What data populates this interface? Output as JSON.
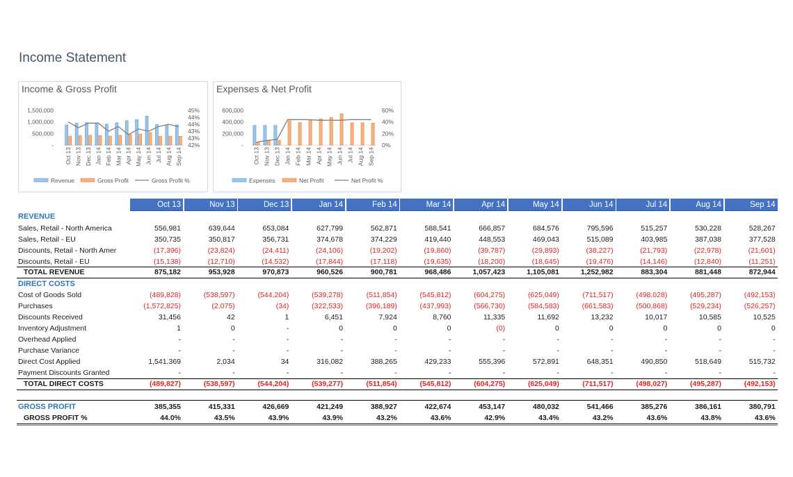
{
  "page_title": "Income Statement",
  "colors": {
    "header_bg": "#4472c4",
    "section_text": "#2e75b6",
    "negative": "#e02424",
    "bar_blue": "#9dc3e6",
    "bar_orange": "#f4b183",
    "line_gray": "#808080"
  },
  "months": [
    "Oct 13",
    "Nov 13",
    "Dec 13",
    "Jan 14",
    "Feb 14",
    "Mar 14",
    "Apr 14",
    "May 14",
    "Jun 14",
    "Jul 14",
    "Aug 14",
    "Sep 14"
  ],
  "chart_data": [
    {
      "type": "bar",
      "title": "Income & Gross Profit",
      "categories": [
        "Oct 13",
        "Nov 13",
        "Dec 13",
        "Jan 14",
        "Feb 14",
        "Mar 14",
        "Apr 14",
        "May 14",
        "Jun 14",
        "Jul 14",
        "Aug 14",
        "Sep 14"
      ],
      "y_ticks": [
        "1,500,000",
        "1,000,000",
        "500,000",
        "-"
      ],
      "y2_ticks": [
        "45%",
        "44%",
        "44%",
        "43%",
        "43%",
        "42%"
      ],
      "ylim": [
        0,
        1500000
      ],
      "y2lim": [
        42,
        45
      ],
      "series": [
        {
          "name": "Revenue",
          "kind": "bar",
          "values": [
            875182,
            953928,
            970873,
            960526,
            900781,
            968486,
            1057423,
            1105081,
            1252982,
            883304,
            881448,
            872944
          ]
        },
        {
          "name": "Gross Profit",
          "kind": "bar",
          "values": [
            385355,
            415331,
            426669,
            421249,
            388927,
            422674,
            453147,
            480032,
            541466,
            385276,
            386161,
            380791
          ]
        },
        {
          "name": "Gross Profit %",
          "kind": "line",
          "values": [
            44.0,
            43.5,
            43.9,
            43.9,
            43.2,
            43.6,
            42.9,
            43.4,
            43.2,
            43.6,
            43.8,
            43.6
          ]
        }
      ],
      "legend": [
        "Revenue",
        "Gross Profit",
        "Gross Profit %"
      ],
      "legend_position": "bottom"
    },
    {
      "type": "bar",
      "title": "Expenses & Net Profit",
      "categories": [
        "Oct 13",
        "Nov 13",
        "Dec 13",
        "Jan 14",
        "Feb 14",
        "Mar 14",
        "Apr 14",
        "May 14",
        "Jun 14",
        "Jul 14",
        "Aug 14",
        "Sep 14"
      ],
      "y_ticks": [
        "600,000",
        "400,000",
        "200,000",
        "-"
      ],
      "y2_ticks": [
        "60%",
        "40%",
        "20%",
        "0%"
      ],
      "ylim": [
        0,
        600000
      ],
      "y2lim": [
        0,
        60
      ],
      "series": [
        {
          "name": "Expenses",
          "kind": "bar",
          "values": [
            340000,
            340000,
            340000,
            0,
            0,
            0,
            0,
            0,
            0,
            0,
            0,
            0
          ]
        },
        {
          "name": "Net Profit",
          "kind": "bar",
          "values": [
            40000,
            75000,
            85000,
            421249,
            388927,
            422674,
            453147,
            480032,
            541466,
            385276,
            386161,
            380791
          ]
        },
        {
          "name": "Net Profit %",
          "kind": "line",
          "values": [
            5,
            8,
            10,
            44,
            44,
            44,
            43,
            43,
            43,
            44,
            44,
            44
          ]
        }
      ],
      "legend": [
        "Expenses",
        "Net Profit",
        "Net Profit %"
      ],
      "legend_position": "bottom"
    }
  ],
  "table": {
    "rows": [
      {
        "type": "section",
        "label": "REVENUE"
      },
      {
        "type": "data",
        "label": "Sales, Retail - North America",
        "values": [
          "556,981",
          "639,644",
          "653,084",
          "627,799",
          "562,871",
          "588,541",
          "666,857",
          "684,576",
          "795,596",
          "515,257",
          "530,228",
          "528,267"
        ]
      },
      {
        "type": "data",
        "label": "Sales, Retail - EU",
        "values": [
          "350,735",
          "350,817",
          "356,731",
          "374,678",
          "374,229",
          "419,440",
          "448,553",
          "469,043",
          "515,089",
          "403,985",
          "387,038",
          "377,528"
        ]
      },
      {
        "type": "data",
        "label": "Discounts, Retail - North Amer",
        "values": [
          "(17,396)",
          "(23,824)",
          "(24,411)",
          "(24,106)",
          "(19,202)",
          "(19,860)",
          "(39,787)",
          "(29,893)",
          "(38,227)",
          "(21,793)",
          "(22,978)",
          "(21,601)"
        ]
      },
      {
        "type": "data",
        "label": "Discounts, Retail - EU",
        "values": [
          "(15,138)",
          "(12,710)",
          "(14,532)",
          "(17,844)",
          "(17,118)",
          "(19,635)",
          "(18,200)",
          "(18,645)",
          "(19,476)",
          "(14,146)",
          "(12,840)",
          "(11,251)"
        ]
      },
      {
        "type": "total",
        "label": "TOTAL REVENUE",
        "values": [
          "875,182",
          "953,928",
          "970,873",
          "960,526",
          "900,781",
          "968,486",
          "1,057,423",
          "1,105,081",
          "1,252,982",
          "883,304",
          "881,448",
          "872,944"
        ]
      },
      {
        "type": "section",
        "label": "DIRECT COSTS"
      },
      {
        "type": "data",
        "label": "Cost of Goods Sold",
        "values": [
          "(489,828)",
          "(538,597)",
          "(544,204)",
          "(539,278)",
          "(511,854)",
          "(545,812)",
          "(604,275)",
          "(625,049)",
          "(711,517)",
          "(498,028)",
          "(495,287)",
          "(492,153)"
        ]
      },
      {
        "type": "data",
        "label": "Purchases",
        "values": [
          "(1,572,825)",
          "(2,075)",
          "(34)",
          "(322,533)",
          "(396,189)",
          "(437,993)",
          "(566,730)",
          "(584,583)",
          "(661,583)",
          "(500,868)",
          "(529,234)",
          "(526,257)"
        ]
      },
      {
        "type": "data",
        "label": "Discounts Received",
        "values": [
          "31,456",
          "42",
          "1",
          "6,451",
          "7,924",
          "8,760",
          "11,335",
          "11,692",
          "13,232",
          "10,017",
          "10,585",
          "10,525"
        ]
      },
      {
        "type": "data",
        "label": "Inventory Adjustment",
        "values": [
          "1",
          "0",
          "-",
          "0",
          "0",
          "0",
          "(0)",
          "0",
          "0",
          "0",
          "0",
          "0"
        ]
      },
      {
        "type": "data",
        "label": "Overhead Applied",
        "values": [
          "-",
          "-",
          "-",
          "-",
          "-",
          "-",
          "-",
          "-",
          "-",
          "-",
          "-",
          "-"
        ]
      },
      {
        "type": "data",
        "label": "Purchase Variance",
        "values": [
          "-",
          "-",
          "-",
          "-",
          "-",
          "-",
          "-",
          "-",
          "-",
          "-",
          "-",
          "-"
        ]
      },
      {
        "type": "data",
        "label": "Direct Cost Applied",
        "values": [
          "1,541,369",
          "2,034",
          "34",
          "316,082",
          "388,265",
          "429,233",
          "555,396",
          "572,891",
          "648,351",
          "490,850",
          "518,649",
          "515,732"
        ]
      },
      {
        "type": "data",
        "label": "Payment Discounts Granted",
        "values": [
          "-",
          "-",
          "-",
          "-",
          "-",
          "-",
          "-",
          "-",
          "-",
          "-",
          "-",
          "-"
        ]
      },
      {
        "type": "total",
        "label": "TOTAL DIRECT COSTS",
        "values": [
          "(489,827)",
          "(538,597)",
          "(544,204)",
          "(539,277)",
          "(511,854)",
          "(545,812)",
          "(604,275)",
          "(625,049)",
          "(711,517)",
          "(498,027)",
          "(495,287)",
          "(492,153)"
        ]
      },
      {
        "type": "gross",
        "label": "GROSS PROFIT",
        "values": [
          "385,355",
          "415,331",
          "426,669",
          "421,249",
          "388,927",
          "422,674",
          "453,147",
          "480,032",
          "541,466",
          "385,276",
          "386,161",
          "380,791"
        ]
      },
      {
        "type": "pct",
        "label": "GROSS PROFIT %",
        "values": [
          "44.0%",
          "43.5%",
          "43.9%",
          "43.9%",
          "43.2%",
          "43.6%",
          "42.9%",
          "43.4%",
          "43.2%",
          "43.6%",
          "43.8%",
          "43.6%"
        ]
      }
    ]
  }
}
